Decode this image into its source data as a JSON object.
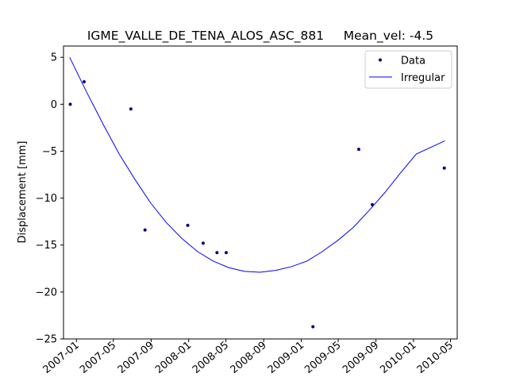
{
  "chart_data": {
    "type": "line",
    "title": "IGME_VALLE_DE_TENA_ALOS_ASC_881     Mean_vel: -4.5",
    "xlabel": "",
    "ylabel": "Displacement [mm]",
    "xlim": [
      "2006-11-20",
      "2010-05-23"
    ],
    "ylim": [
      -25,
      6.2
    ],
    "y_ticks": [
      5,
      0,
      -5,
      -10,
      -15,
      -20,
      -25
    ],
    "y_tick_labels": [
      "5",
      "0",
      "−5",
      "−10",
      "−15",
      "−20",
      "−25"
    ],
    "x_ticks": [
      "2007-01-01",
      "2007-05-01",
      "2007-09-01",
      "2008-01-01",
      "2008-05-01",
      "2008-09-01",
      "2009-01-01",
      "2009-05-01",
      "2009-09-01",
      "2010-01-01",
      "2010-05-01"
    ],
    "x_tick_labels": [
      "2007-01",
      "2007-05",
      "2007-09",
      "2008-01",
      "2008-05",
      "2008-09",
      "2009-01",
      "2009-05",
      "2009-09",
      "2010-01",
      "2010-05"
    ],
    "grid": false,
    "legend_position": "top-right",
    "legend": [
      {
        "label": "Data",
        "kind": "marker",
        "color": "#000080"
      },
      {
        "label": "Irregular",
        "kind": "line",
        "color": "#0000ff"
      }
    ],
    "series": [
      {
        "name": "Data",
        "style": "points",
        "color": "#000080",
        "points": [
          {
            "x": "2006-12-12",
            "y": 0.0
          },
          {
            "x": "2007-01-26",
            "y": 2.4
          },
          {
            "x": "2007-06-27",
            "y": -0.5
          },
          {
            "x": "2007-08-12",
            "y": -13.4
          },
          {
            "x": "2007-12-29",
            "y": -12.9
          },
          {
            "x": "2008-02-17",
            "y": -14.8
          },
          {
            "x": "2008-04-02",
            "y": -15.8
          },
          {
            "x": "2008-05-02",
            "y": -15.8
          },
          {
            "x": "2009-02-08",
            "y": -23.7
          },
          {
            "x": "2009-07-07",
            "y": -4.8
          },
          {
            "x": "2009-08-20",
            "y": -10.7
          },
          {
            "x": "2010-04-11",
            "y": -6.8
          }
        ]
      },
      {
        "name": "Irregular",
        "style": "line",
        "color": "#0000ff",
        "points": [
          {
            "x": "2006-12-10",
            "y": 5.0
          },
          {
            "x": "2007-02-03",
            "y": 1.3
          },
          {
            "x": "2007-03-30",
            "y": -2.2
          },
          {
            "x": "2007-05-20",
            "y": -5.3
          },
          {
            "x": "2007-07-10",
            "y": -8.0
          },
          {
            "x": "2007-08-30",
            "y": -10.5
          },
          {
            "x": "2007-10-20",
            "y": -12.6
          },
          {
            "x": "2007-12-10",
            "y": -14.3
          },
          {
            "x": "2008-01-30",
            "y": -15.7
          },
          {
            "x": "2008-03-20",
            "y": -16.7
          },
          {
            "x": "2008-05-10",
            "y": -17.4
          },
          {
            "x": "2008-06-30",
            "y": -17.8
          },
          {
            "x": "2008-08-20",
            "y": -17.9
          },
          {
            "x": "2008-10-10",
            "y": -17.7
          },
          {
            "x": "2008-11-30",
            "y": -17.3
          },
          {
            "x": "2009-01-20",
            "y": -16.7
          },
          {
            "x": "2009-03-10",
            "y": -15.7
          },
          {
            "x": "2009-04-30",
            "y": -14.5
          },
          {
            "x": "2009-06-20",
            "y": -13.1
          },
          {
            "x": "2009-08-10",
            "y": -11.3
          },
          {
            "x": "2009-09-30",
            "y": -9.4
          },
          {
            "x": "2009-11-20",
            "y": -7.3
          },
          {
            "x": "2010-01-10",
            "y": -5.3
          },
          {
            "x": "2010-04-13",
            "y": -3.9
          }
        ]
      }
    ]
  }
}
